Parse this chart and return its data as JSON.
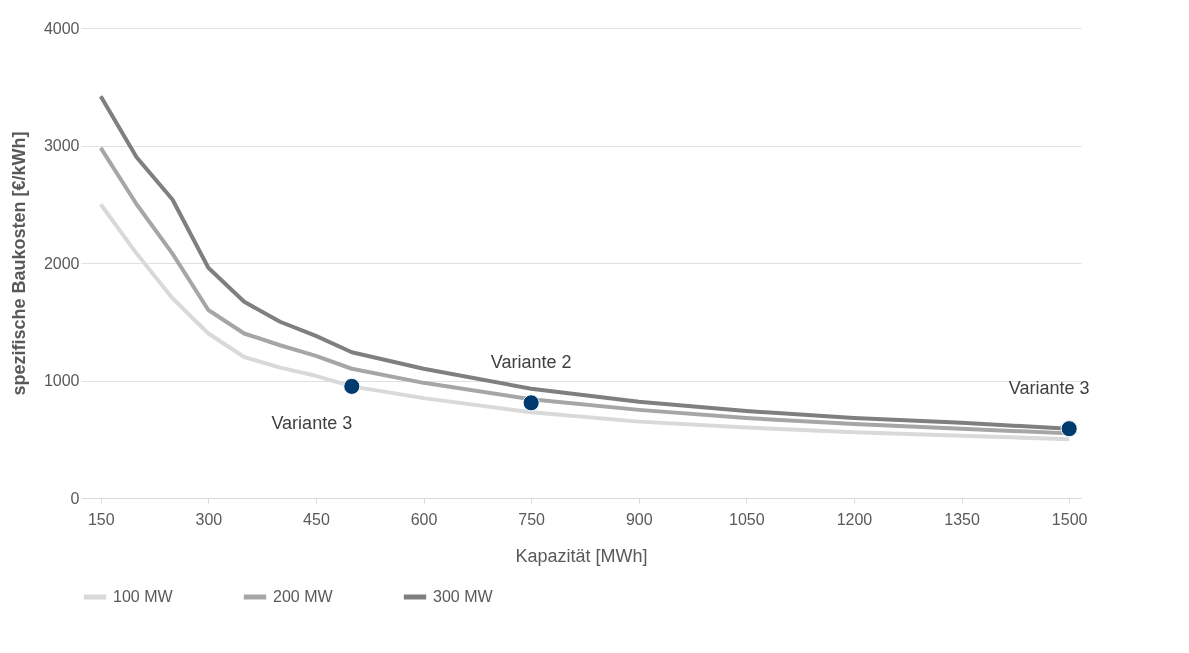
{
  "chart_data": {
    "type": "line",
    "xlabel": "Kapazität [MWh]",
    "ylabel": "spezifische Baukosten [€/kWh]",
    "xlim": [
      122.5,
      1516.5
    ],
    "xticks": [
      150,
      300,
      450,
      600,
      750,
      900,
      1050,
      1200,
      1350,
      1500
    ],
    "ylim": [
      0,
      4000
    ],
    "yticks": [
      0,
      1000,
      2000,
      3000,
      4000
    ],
    "grid": "y",
    "legend": "bottom",
    "line_style": "solid",
    "marker": "none",
    "x": [
      150,
      200,
      250,
      300,
      350,
      400,
      450,
      500,
      600,
      750,
      900,
      1050,
      1200,
      1350,
      1500
    ],
    "series": [
      {
        "name": "100 MW",
        "color": "#d9d9d9",
        "values": [
          2500,
          2080,
          1700,
          1400,
          1200,
          1110,
          1040,
          950,
          850,
          730,
          650,
          600,
          560,
          530,
          500
        ]
      },
      {
        "name": "200 MW",
        "color": "#a6a6a6",
        "values": [
          2980,
          2500,
          2080,
          1600,
          1400,
          1300,
          1210,
          1100,
          980,
          840,
          750,
          680,
          630,
          590,
          550
        ]
      },
      {
        "name": "300 MW",
        "color": "#7f7f7f",
        "values": [
          3420,
          2900,
          2540,
          1960,
          1670,
          1500,
          1380,
          1240,
          1100,
          930,
          820,
          740,
          680,
          640,
          590
        ]
      },
      {
        "type": "scatter",
        "color": "#003b6f",
        "marker": "circle",
        "x": [
          500,
          750,
          1500
        ],
        "values": [
          950,
          810,
          590
        ]
      }
    ],
    "annotations": [
      {
        "text": "Variante 3",
        "x": 500,
        "y": 950
      },
      {
        "text": "Variante 2",
        "x": 750,
        "y": 810
      },
      {
        "text": "Variante 3",
        "x": 1500,
        "y": 590
      }
    ]
  }
}
